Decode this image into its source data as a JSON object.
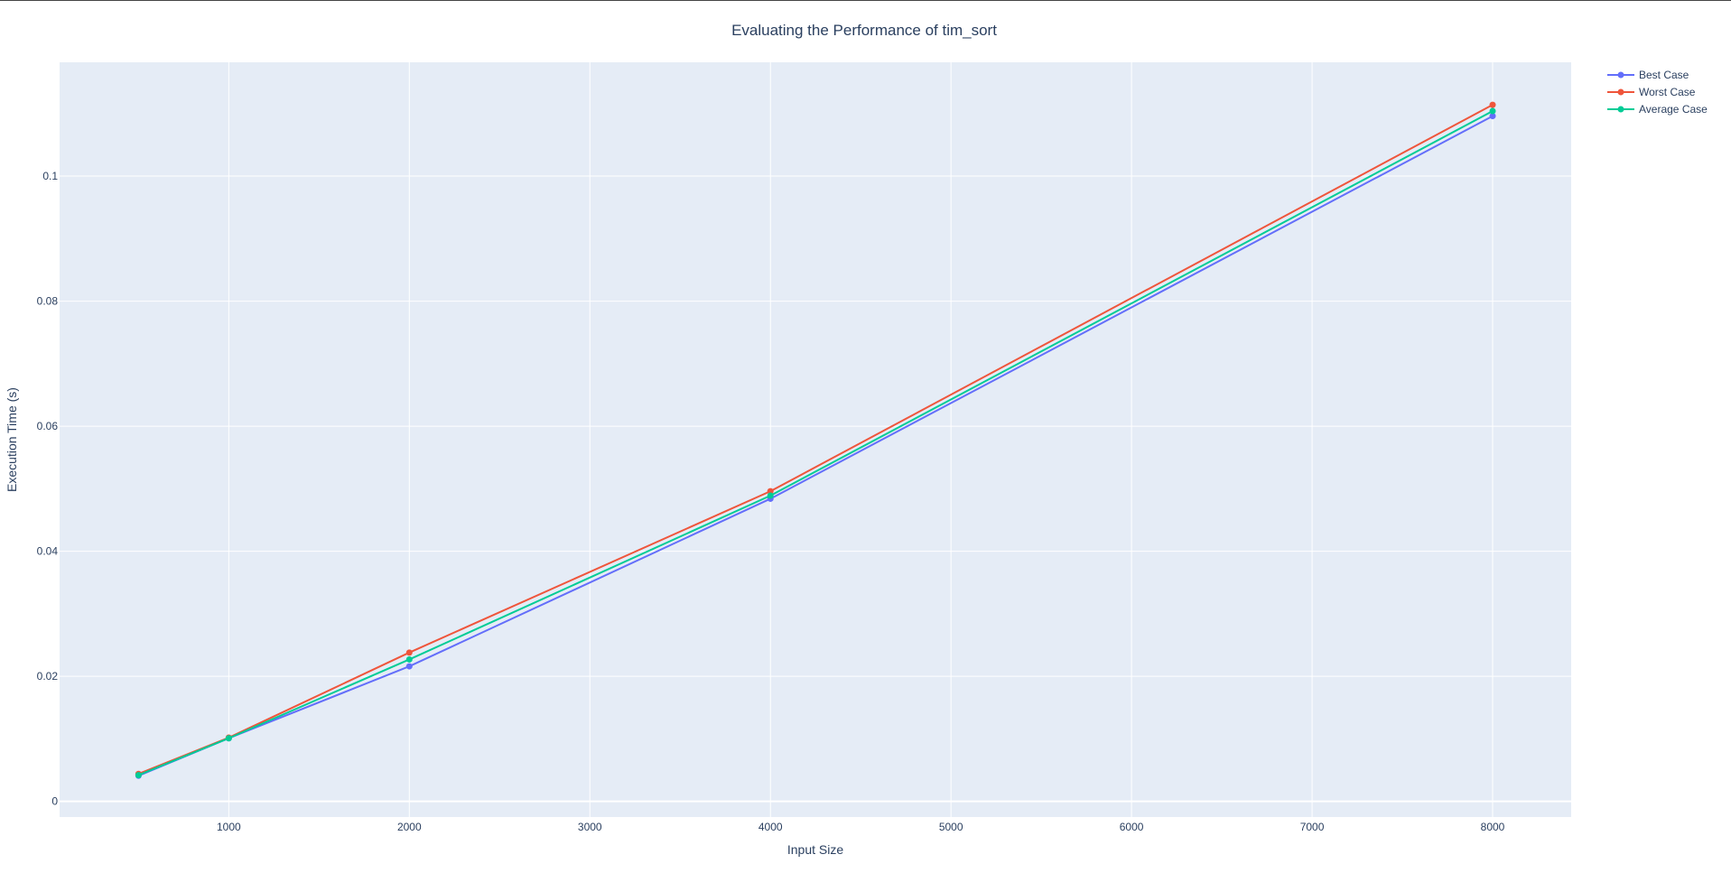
{
  "chart_data": {
    "type": "line",
    "title": "Evaluating the Performance of tim_sort",
    "xlabel": "Input Size",
    "ylabel": "Execution Time (s)",
    "x": [
      500,
      1000,
      2000,
      4000,
      8000
    ],
    "series": [
      {
        "name": "Best Case",
        "color": "#636efa",
        "values": [
          0.0041,
          0.0101,
          0.0216,
          0.0484,
          0.1096
        ]
      },
      {
        "name": "Worst Case",
        "color": "#ef553b",
        "values": [
          0.0044,
          0.0102,
          0.0238,
          0.0496,
          0.1114
        ]
      },
      {
        "name": "Average Case",
        "color": "#00cc96",
        "values": [
          0.0042,
          0.0101,
          0.0227,
          0.0489,
          0.1104
        ]
      }
    ],
    "xlim": [
      63,
      8435
    ],
    "ylim": [
      -0.0025,
      0.1182
    ],
    "xticks": [
      1000,
      2000,
      3000,
      4000,
      5000,
      6000,
      7000,
      8000
    ],
    "xtick_labels": [
      "1000",
      "2000",
      "3000",
      "4000",
      "5000",
      "6000",
      "7000",
      "8000"
    ],
    "yticks": [
      0,
      0.02,
      0.04,
      0.06,
      0.08,
      0.1
    ],
    "ytick_labels": [
      "0",
      "0.02",
      "0.04",
      "0.06",
      "0.08",
      "0.1"
    ],
    "grid": true,
    "legend_position": "top-right, outside plot",
    "plot_background": "#e5ecf6",
    "grid_color": "#ffffff",
    "text_color": "#2a3f5f"
  }
}
